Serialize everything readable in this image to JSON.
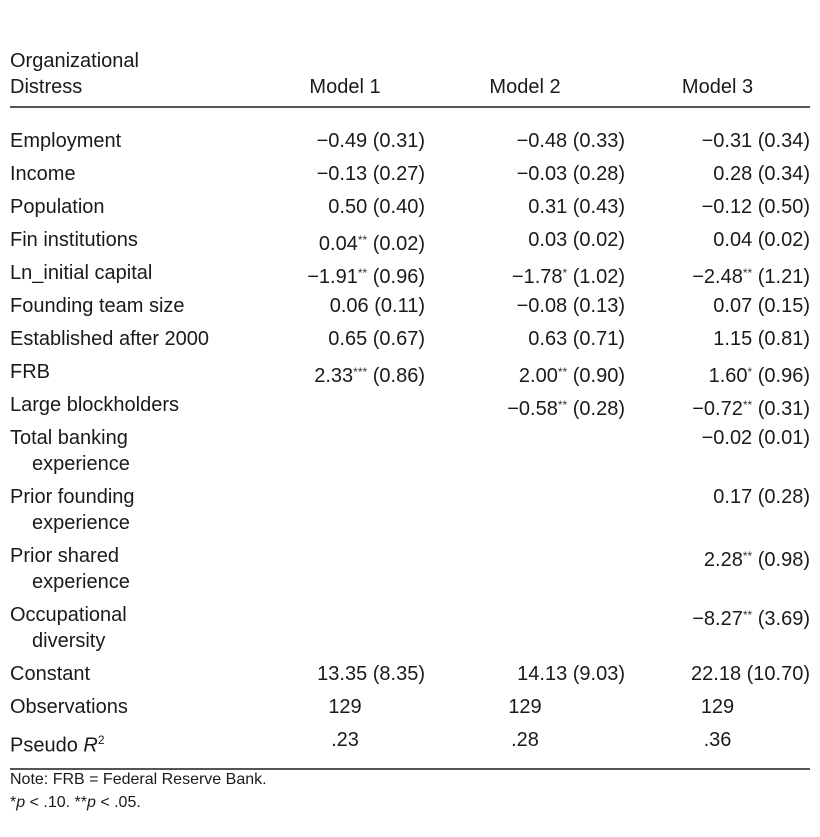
{
  "table": {
    "header": {
      "label_line1": "Organizational",
      "label_line2": "Distress",
      "model1": "Model 1",
      "model2": "Model 2",
      "model3": "Model 3"
    },
    "rows": [
      {
        "label": "Employment",
        "m1": "−0.49 (0.31)",
        "m2": "−0.48 (0.33)",
        "m3": "−0.31 (0.34)"
      },
      {
        "label": "Income",
        "m1": "−0.13 (0.27)",
        "m2": "−0.03 (0.28)",
        "m3": "0.28 (0.34)"
      },
      {
        "label": "Population",
        "m1": "0.50 (0.40)",
        "m2": "0.31 (0.43)",
        "m3": "−0.12 (0.50)"
      },
      {
        "label": "Fin institutions",
        "m1_coef": "0.04",
        "m1_sig": "**",
        "m1_se": " (0.02)",
        "m2": "0.03 (0.02)",
        "m3": "0.04 (0.02)"
      },
      {
        "label": "Ln_initial capital",
        "m1_coef": "−1.91",
        "m1_sig": "**",
        "m1_se": " (0.96)",
        "m2_coef": "−1.78",
        "m2_sig": "*",
        "m2_se": " (1.02)",
        "m3_coef": "−2.48",
        "m3_sig": "**",
        "m3_se": " (1.21)"
      },
      {
        "label": "Founding team size",
        "m1": "0.06 (0.11)",
        "m2": "−0.08 (0.13)",
        "m3": "0.07 (0.15)"
      },
      {
        "label": "Established after 2000",
        "m1": "0.65 (0.67)",
        "m2": "0.63 (0.71)",
        "m3": "1.15 (0.81)"
      },
      {
        "label": "FRB",
        "m1_coef": "2.33",
        "m1_sig": "***",
        "m1_se": " (0.86)",
        "m2_coef": "2.00",
        "m2_sig": "**",
        "m2_se": " (0.90)",
        "m3_coef": "1.60",
        "m3_sig": "*",
        "m3_se": " (0.96)"
      },
      {
        "label": "Large blockholders",
        "m2_coef": "−0.58",
        "m2_sig": "**",
        "m2_se": " (0.28)",
        "m3_coef": "−0.72",
        "m3_sig": "**",
        "m3_se": " (0.31)"
      },
      {
        "label_line1": "Total banking",
        "label_line2": "experience",
        "m3": "−0.02 (0.01)"
      },
      {
        "label_line1": "Prior founding",
        "label_line2": "experience",
        "m3": "0.17 (0.28)"
      },
      {
        "label_line1": "Prior shared",
        "label_line2": "experience",
        "m3_coef": "2.28",
        "m3_sig": "**",
        "m3_se": " (0.98)"
      },
      {
        "label_line1": "Occupational",
        "label_line2": "diversity",
        "m3_coef": "−8.27",
        "m3_sig": "**",
        "m3_se": " (3.69)"
      },
      {
        "label": "Constant",
        "m1": "13.35 (8.35)",
        "m2": "14.13 (9.03)",
        "m3": "22.18 (10.70)"
      },
      {
        "label": "Observations",
        "m1": "129",
        "m2": "129",
        "m3": "129"
      },
      {
        "label_text": "Pseudo ",
        "label_italic": "R",
        "label_sup": "2",
        "m1": ".23",
        "m2": ".28",
        "m3": ".36"
      }
    ]
  },
  "note": {
    "line1": "Note: FRB = Federal Reserve Bank.",
    "sig1_mark": "*",
    "sig1_p": "p",
    "sig1_rest": " < .10. ",
    "sig2_mark": "**",
    "sig2_p": "p",
    "sig2_rest": " < .05."
  }
}
